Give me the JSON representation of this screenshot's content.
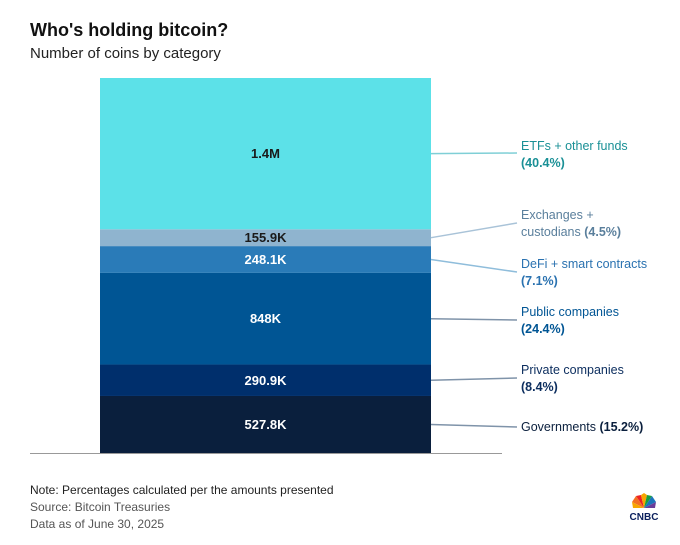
{
  "chart_data": {
    "type": "bar",
    "stacked": true,
    "title": "Who's holding bitcoin?",
    "subtitle": "Number of coins by category",
    "unit": "coins",
    "segments": [
      {
        "category": "Governments",
        "value": 527800,
        "value_label": "527.8K",
        "pct_label": "(15.2%)",
        "color": "#0a1f3d",
        "text_color": "#0a1f3d",
        "value_text_color": "#ffffff"
      },
      {
        "category": "Private companies",
        "value": 290900,
        "value_label": "290.9K",
        "pct_label": "(8.4%)",
        "color": "#002f6c",
        "text_color": "#0b2d5e",
        "value_text_color": "#ffffff"
      },
      {
        "category": "Public companies",
        "value": 848000,
        "value_label": "848K",
        "pct_label": "(24.4%)",
        "color": "#005594",
        "text_color": "#005594",
        "value_text_color": "#ffffff"
      },
      {
        "category": "DeFi + smart contracts",
        "value": 248100,
        "value_label": "248.1K",
        "pct_label": "(7.1%)",
        "color": "#2a7bb8",
        "text_color": "#2a72b0",
        "value_text_color": "#ffffff"
      },
      {
        "category": "Exchanges + custodians",
        "value": 155900,
        "value_label": "155.9K",
        "pct_label": "(4.5%)",
        "color": "#8fb4cf",
        "text_color": "#5a7f9c",
        "value_text_color": "#1a1a1a"
      },
      {
        "category": "ETFs + other funds",
        "value": 1400000,
        "value_label": "1.4M",
        "pct_label": "(40.4%)",
        "color": "#5ce1e8",
        "text_color": "#1a9096",
        "value_text_color": "#1a1a1a"
      }
    ]
  },
  "footer": {
    "note": "Note: Percentages calculated per the amounts presented",
    "source": "Source: Bitcoin Treasuries",
    "as_of": "Data as of June 30, 2025",
    "logo": "CNBC"
  }
}
